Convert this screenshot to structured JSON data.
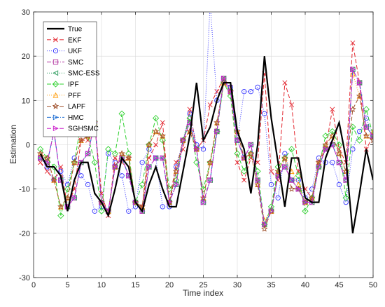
{
  "chart_data": {
    "type": "line",
    "title": "",
    "xlabel": "Time index",
    "ylabel": "Estimation",
    "xlim": [
      0,
      50
    ],
    "ylim": [
      -30,
      30
    ],
    "xticks": [
      0,
      5,
      10,
      15,
      20,
      25,
      30,
      35,
      40,
      45,
      50
    ],
    "yticks": [
      -30,
      -20,
      -10,
      0,
      10,
      20,
      30
    ],
    "grid": true,
    "legend_position": "top-left",
    "x": [
      1,
      2,
      3,
      4,
      5,
      6,
      7,
      8,
      9,
      10,
      11,
      12,
      13,
      14,
      15,
      16,
      17,
      18,
      19,
      20,
      21,
      22,
      23,
      24,
      25,
      26,
      27,
      28,
      29,
      30,
      31,
      32,
      33,
      34,
      35,
      36,
      37,
      38,
      39,
      40,
      41,
      42,
      43,
      44,
      45,
      46,
      47,
      48,
      49,
      50
    ],
    "series": [
      {
        "name": "True",
        "color": "#000000",
        "dash": "",
        "width": 2.2,
        "marker": "none",
        "values": [
          -2,
          -5,
          -5,
          -7,
          -15,
          -8,
          -4,
          -4,
          -11,
          -13,
          -16,
          -10,
          -3,
          -5,
          -13,
          -15,
          -9,
          -5,
          -10,
          -14,
          -14,
          -6,
          2,
          14,
          1,
          4,
          10,
          14,
          14,
          3,
          -1,
          -11,
          0,
          20,
          6,
          -4,
          -14,
          -3,
          -3,
          -12,
          -13,
          -13,
          -3,
          1,
          5,
          -3,
          -20,
          -11,
          -1,
          -8
        ]
      },
      {
        "name": "EKF",
        "color": "#e3262f",
        "dash": "6,3",
        "width": 1,
        "marker": "x",
        "values": [
          -4,
          -6,
          -8,
          -5,
          -14,
          -10,
          1,
          1,
          5,
          -11,
          -16,
          -3,
          -4,
          -3,
          -13,
          -14,
          -3,
          0,
          5,
          -13,
          -4,
          -1,
          8,
          -1,
          1,
          9,
          12,
          15,
          13,
          -4,
          -8,
          -3,
          -4,
          16,
          -6,
          -8,
          14,
          9,
          -6,
          -10,
          -12,
          -4,
          -1,
          8,
          -1,
          -4,
          23,
          14,
          -1,
          2
        ]
      },
      {
        "name": "UKF",
        "color": "#3333ff",
        "dash": "1,2",
        "width": 1,
        "marker": "circle",
        "values": [
          -3,
          -5,
          -8,
          -6,
          -9,
          -3,
          -7,
          -9,
          -15,
          -14,
          -2,
          -4,
          -7,
          -15,
          -14,
          -4,
          -1,
          -3,
          -14,
          -14,
          -5,
          1,
          7,
          0,
          -1,
          32,
          10,
          14,
          13,
          1,
          12,
          12,
          13,
          7,
          -9,
          -12,
          -2,
          -8,
          -8,
          -12,
          -10,
          -3,
          -4,
          -4,
          -9,
          -13,
          -1,
          3,
          6,
          2
        ]
      },
      {
        "name": "SMC",
        "color": "#b0309e",
        "dash": "6,2,1,2",
        "width": 1,
        "marker": "square",
        "values": [
          -3,
          -4,
          3,
          -8,
          -14,
          -12,
          -4,
          -2,
          5,
          -13,
          -15,
          -5,
          -3,
          -7,
          -13,
          -15,
          -5,
          -3,
          -3,
          -13,
          -9,
          1,
          5,
          -1,
          -13,
          -8,
          3,
          15,
          12,
          1,
          -3,
          0,
          -8,
          -18,
          -15,
          -7,
          -5,
          -8,
          -10,
          -13,
          -13,
          -5,
          -1,
          0,
          -4,
          -8,
          17,
          14,
          4,
          2
        ]
      },
      {
        "name": "SMC-ESS",
        "color": "#2e9c5e",
        "dash": "1,2",
        "width": 1,
        "marker": "triangle-left",
        "values": [
          -3,
          -4,
          3,
          -8,
          -14,
          -12,
          -4,
          -2,
          5,
          -13,
          -15,
          -5,
          -3,
          -7,
          -13,
          -15,
          -5,
          -3,
          -3,
          -13,
          -9,
          1,
          5,
          -1,
          -13,
          -8,
          3,
          15,
          12,
          1,
          -3,
          0,
          -8,
          -18,
          -15,
          -7,
          -5,
          -8,
          -10,
          -13,
          -13,
          -5,
          -1,
          0,
          -4,
          -8,
          17,
          14,
          4,
          2
        ]
      },
      {
        "name": "IPF",
        "color": "#2fd12f",
        "dash": "6,3",
        "width": 1,
        "marker": "diamond",
        "values": [
          -1,
          -3,
          -5,
          -16,
          -10,
          -4,
          5,
          2,
          -4,
          -15,
          -1,
          -2,
          7,
          -2,
          -13,
          -9,
          0,
          6,
          1,
          -10,
          -8,
          1,
          6,
          -4,
          -10,
          -4,
          3,
          14,
          11,
          -2,
          -6,
          -2,
          -6,
          -18,
          -14,
          -5,
          -3,
          -1,
          -7,
          -15,
          -12,
          -5,
          2,
          3,
          0,
          -12,
          4,
          1,
          8,
          2
        ]
      },
      {
        "name": "PFF",
        "color": "#ff9900",
        "dash": "1,2",
        "width": 1,
        "marker": "triangle-up",
        "values": [
          -2,
          -3,
          -8,
          -14,
          -12,
          -4,
          1,
          2,
          5,
          -13,
          -15,
          -5,
          -2,
          -3,
          -13,
          -14,
          0,
          3,
          2,
          -13,
          -6,
          1,
          3,
          -1,
          -12,
          -4,
          5,
          14,
          12,
          3,
          -3,
          -2,
          -9,
          -17,
          -15,
          -6,
          -3,
          -6,
          -9,
          -13,
          -12,
          -4,
          0,
          2,
          -2,
          -6,
          16,
          11,
          2,
          3
        ]
      },
      {
        "name": "LAPF",
        "color": "#a0522d",
        "dash": "6,3",
        "width": 1,
        "marker": "star",
        "values": [
          -2,
          -3,
          -8,
          -14,
          -12,
          -4,
          1,
          2,
          5,
          -13,
          -15,
          -5,
          -2,
          -3,
          -13,
          -14,
          0,
          3,
          2,
          -13,
          -6,
          1,
          3,
          -1,
          -12,
          -4,
          5,
          14,
          12,
          3,
          -3,
          -2,
          -9,
          -19,
          -15,
          -6,
          -3,
          -10,
          -10,
          -13,
          -12,
          -4,
          0,
          2,
          -2,
          -6,
          8,
          11,
          2,
          1
        ]
      },
      {
        "name": "HMC",
        "color": "#1f6ed4",
        "dash": "6,2,1,2",
        "width": 1,
        "marker": "triangle-right",
        "values": [
          -3,
          -4,
          3,
          -8,
          -14,
          -12,
          -4,
          -2,
          5,
          -13,
          -15,
          -5,
          -3,
          -7,
          -13,
          -15,
          -5,
          -3,
          -3,
          -13,
          -9,
          1,
          5,
          -1,
          -13,
          -8,
          3,
          15,
          12,
          1,
          -3,
          0,
          -8,
          -18,
          -15,
          -7,
          -5,
          -8,
          -10,
          -13,
          -13,
          -5,
          -1,
          0,
          -4,
          -8,
          17,
          14,
          4,
          2
        ]
      },
      {
        "name": "SGHSMC",
        "color": "#cc22cc",
        "dash": "6,3",
        "width": 1,
        "marker": "triangle-right",
        "values": [
          -3,
          -4,
          3,
          -8,
          -14,
          -12,
          -4,
          -2,
          5,
          -13,
          -15,
          -5,
          -3,
          -7,
          -13,
          -15,
          -5,
          -3,
          -3,
          -13,
          -9,
          1,
          5,
          -1,
          -13,
          -8,
          3,
          15,
          12,
          1,
          -3,
          0,
          -8,
          -18,
          -15,
          -7,
          -5,
          -8,
          -10,
          -13,
          -13,
          -5,
          -1,
          0,
          -4,
          -8,
          17,
          14,
          4,
          2
        ]
      }
    ]
  }
}
